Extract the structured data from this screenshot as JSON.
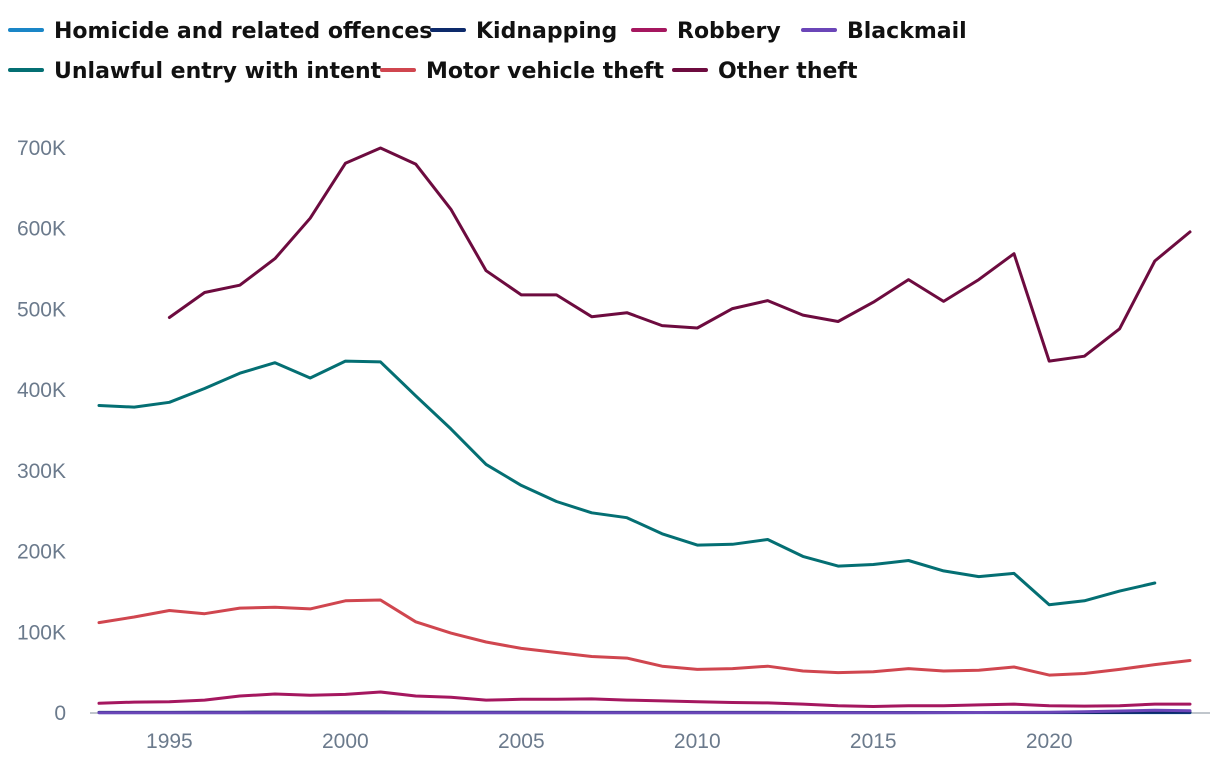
{
  "chart_data": {
    "type": "line",
    "title": "",
    "xlabel": "",
    "ylabel": "",
    "xlim": [
      1993,
      2024
    ],
    "ylim": [
      0,
      700000
    ],
    "x_ticks": [
      1995,
      2000,
      2005,
      2010,
      2015,
      2020
    ],
    "x_tick_labels": [
      "1995",
      "2000",
      "2005",
      "2010",
      "2015",
      "2020"
    ],
    "y_ticks": [
      0,
      100000,
      200000,
      300000,
      400000,
      500000,
      600000,
      700000
    ],
    "y_tick_labels": [
      "0",
      "100K",
      "200K",
      "300K",
      "400K",
      "500K",
      "600K",
      "700K"
    ],
    "legend_position": "top-left",
    "series": [
      {
        "name": "Homicide and related offences",
        "color": "#1a86c7",
        "x": [
          1993,
          1994,
          1995,
          1996,
          1997,
          1998,
          1999,
          2000,
          2001,
          2002,
          2003,
          2004,
          2005,
          2006,
          2007,
          2008,
          2009,
          2010,
          2011,
          2012,
          2013,
          2014,
          2015,
          2016,
          2017,
          2018,
          2019,
          2020,
          2021,
          2022,
          2023,
          2024
        ],
        "values": [
          500,
          500,
          500,
          500,
          500,
          500,
          500,
          500,
          500,
          500,
          500,
          500,
          500,
          500,
          500,
          500,
          500,
          500,
          500,
          500,
          500,
          500,
          500,
          500,
          500,
          500,
          500,
          500,
          500,
          500,
          500,
          500
        ]
      },
      {
        "name": "Kidnapping",
        "color": "#0d2a6b",
        "x": [
          1993,
          1994,
          1995,
          1996,
          1997,
          1998,
          1999,
          2000,
          2001,
          2002,
          2003,
          2004,
          2005,
          2006,
          2007,
          2008,
          2009,
          2010,
          2011,
          2012,
          2013,
          2014,
          2015,
          2016,
          2017,
          2018,
          2019,
          2020,
          2021,
          2022,
          2023,
          2024
        ],
        "values": [
          800,
          800,
          800,
          900,
          1000,
          1100,
          1100,
          1200,
          1200,
          1100,
          1000,
          1000,
          900,
          900,
          800,
          800,
          800,
          700,
          700,
          700,
          600,
          600,
          600,
          600,
          600,
          600,
          600,
          600,
          600,
          600,
          700,
          700
        ]
      },
      {
        "name": "Robbery",
        "color": "#a5175f",
        "x": [
          1993,
          1994,
          1995,
          1996,
          1997,
          1998,
          1999,
          2000,
          2001,
          2002,
          2003,
          2004,
          2005,
          2006,
          2007,
          2008,
          2009,
          2010,
          2011,
          2012,
          2013,
          2014,
          2015,
          2016,
          2017,
          2018,
          2019,
          2020,
          2021,
          2022,
          2023,
          2024
        ],
        "values": [
          12000,
          13500,
          14000,
          16000,
          21000,
          23500,
          22000,
          23000,
          26000,
          21000,
          19500,
          16000,
          17000,
          17000,
          17500,
          16000,
          15000,
          14000,
          13000,
          12500,
          11000,
          9000,
          8000,
          9000,
          9000,
          10000,
          11000,
          9000,
          8500,
          9000,
          11000,
          11000
        ]
      },
      {
        "name": "Blackmail",
        "color": "#6b46b8",
        "x": [
          1993,
          1994,
          1995,
          1996,
          1997,
          1998,
          1999,
          2000,
          2001,
          2002,
          2003,
          2004,
          2005,
          2006,
          2007,
          2008,
          2009,
          2010,
          2011,
          2012,
          2013,
          2014,
          2015,
          2016,
          2017,
          2018,
          2019,
          2020,
          2021,
          2022,
          2023,
          2024
        ],
        "values": [
          300,
          300,
          300,
          300,
          300,
          300,
          300,
          300,
          300,
          300,
          300,
          300,
          300,
          300,
          300,
          300,
          300,
          300,
          300,
          300,
          300,
          300,
          300,
          400,
          500,
          600,
          800,
          1000,
          1500,
          2500,
          3500,
          2800
        ]
      },
      {
        "name": "Unlawful entry with intent",
        "color": "#046f73",
        "x": [
          1993,
          1994,
          1995,
          1996,
          1997,
          1998,
          1999,
          2000,
          2001,
          2002,
          2003,
          2004,
          2005,
          2006,
          2007,
          2008,
          2009,
          2010,
          2011,
          2012,
          2013,
          2014,
          2015,
          2016,
          2017,
          2018,
          2019,
          2020,
          2021,
          2022,
          2023
        ],
        "values": [
          381000,
          379000,
          385000,
          402000,
          421000,
          434000,
          415000,
          436000,
          435000,
          393000,
          352000,
          308000,
          282000,
          262000,
          248000,
          242000,
          222000,
          208000,
          209000,
          215000,
          194000,
          182000,
          184000,
          189000,
          176000,
          169000,
          173000,
          134000,
          139000,
          151000,
          161000
        ]
      },
      {
        "name": "Motor vehicle theft",
        "color": "#d0464f",
        "x": [
          1993,
          1994,
          1995,
          1996,
          1997,
          1998,
          1999,
          2000,
          2001,
          2002,
          2003,
          2004,
          2005,
          2006,
          2007,
          2008,
          2009,
          2010,
          2011,
          2012,
          2013,
          2014,
          2015,
          2016,
          2017,
          2018,
          2019,
          2020,
          2021,
          2022,
          2023,
          2024
        ],
        "values": [
          112000,
          119000,
          127000,
          123000,
          130000,
          131000,
          129000,
          139000,
          140000,
          113000,
          99000,
          88000,
          80000,
          75000,
          70000,
          68000,
          58000,
          54000,
          55000,
          58000,
          52000,
          50000,
          51000,
          55000,
          52000,
          53000,
          57000,
          47000,
          49000,
          54000,
          60000,
          65000
        ]
      },
      {
        "name": "Other theft",
        "color": "#6d0b3f",
        "x": [
          1995,
          1996,
          1997,
          1998,
          1999,
          2000,
          2001,
          2002,
          2003,
          2004,
          2005,
          2006,
          2007,
          2008,
          2009,
          2010,
          2011,
          2012,
          2013,
          2014,
          2015,
          2016,
          2017,
          2018,
          2019,
          2020,
          2021,
          2022,
          2023,
          2024
        ],
        "values": [
          490000,
          521000,
          530000,
          563000,
          613000,
          681000,
          700000,
          680000,
          624000,
          548000,
          518000,
          518000,
          491000,
          496000,
          480000,
          477000,
          501000,
          511000,
          493000,
          485000,
          509000,
          537000,
          510000,
          537000,
          569000,
          436000,
          442000,
          476000,
          560000,
          596000
        ]
      }
    ],
    "legend_rows": [
      [
        0,
        1,
        2,
        3
      ],
      [
        4,
        5,
        6
      ]
    ]
  }
}
